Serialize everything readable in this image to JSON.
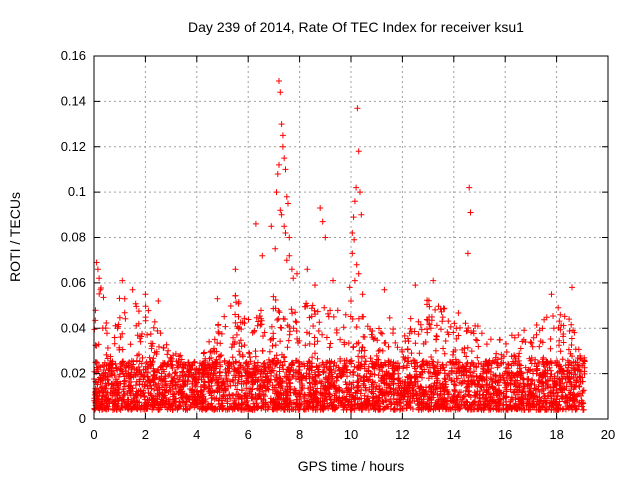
{
  "chart_data": {
    "type": "scatter",
    "title": "Day 239 of 2014, Rate Of TEC Index for receiver ksu1",
    "xlabel": "GPS time / hours",
    "ylabel": "ROTI / TECUs",
    "xlim": [
      0,
      20
    ],
    "ylim": [
      0,
      0.16
    ],
    "x_ticks": [
      "0",
      "2",
      "4",
      "6",
      "8",
      "10",
      "12",
      "14",
      "16",
      "18",
      "20"
    ],
    "y_ticks": [
      "0",
      "0.02",
      "0.04",
      "0.06",
      "0.08",
      "0.1",
      "0.12",
      "0.14",
      "0.16"
    ],
    "grid": true,
    "marker": "+",
    "color": "#ff0000",
    "series": [
      {
        "x": [
          7.2,
          7.25,
          7.3,
          7.35,
          7.4,
          7.45,
          7.5,
          7.55,
          7.3,
          7.4,
          7.6,
          7.7,
          7.1,
          7.15,
          7.2,
          7.35,
          7.45,
          7.05,
          7.5,
          7.25,
          6.55,
          6.9,
          7.6,
          7.75,
          10.05,
          10.1,
          10.15,
          10.2,
          10.25,
          10.3,
          10.35,
          10.4,
          10.12,
          10.22,
          10.05,
          10.15,
          10.3,
          9.95,
          10.0,
          10.45,
          14.6,
          14.65,
          14.55,
          0.1,
          0.15,
          0.2,
          0.25,
          5.5,
          6.3,
          8.8,
          8.9,
          9.0,
          13.2,
          1.1,
          1.5,
          2.0,
          2.5,
          4.8,
          11.3,
          12.5,
          17.8,
          18.6,
          7.9,
          8.3,
          8.6,
          9.3
        ],
        "y": [
          0.149,
          0.144,
          0.13,
          0.12,
          0.115,
          0.11,
          0.098,
          0.095,
          0.09,
          0.085,
          0.072,
          0.066,
          0.1,
          0.108,
          0.112,
          0.125,
          0.082,
          0.075,
          0.07,
          0.092,
          0.072,
          0.085,
          0.08,
          0.062,
          0.082,
          0.089,
          0.096,
          0.102,
          0.137,
          0.118,
          0.1,
          0.09,
          0.079,
          0.068,
          0.073,
          0.061,
          0.064,
          0.058,
          0.052,
          0.055,
          0.102,
          0.091,
          0.073,
          0.069,
          0.066,
          0.062,
          0.057,
          0.066,
          0.086,
          0.093,
          0.087,
          0.08,
          0.061,
          0.061,
          0.057,
          0.055,
          0.052,
          0.053,
          0.057,
          0.059,
          0.055,
          0.058,
          0.064,
          0.066,
          0.059,
          0.061
        ]
      }
    ],
    "dense_band": {
      "x_range": [
        0,
        19.1
      ],
      "baseline_range": [
        0.004,
        0.035
      ],
      "local_peak_envelope": [
        [
          0,
          0.055
        ],
        [
          0.3,
          0.06
        ],
        [
          0.6,
          0.04
        ],
        [
          1.0,
          0.055
        ],
        [
          1.5,
          0.05
        ],
        [
          2.0,
          0.055
        ],
        [
          2.5,
          0.04
        ],
        [
          3.0,
          0.03
        ],
        [
          3.5,
          0.03
        ],
        [
          4.0,
          0.028
        ],
        [
          4.5,
          0.035
        ],
        [
          5.0,
          0.045
        ],
        [
          5.5,
          0.055
        ],
        [
          6.0,
          0.045
        ],
        [
          6.5,
          0.05
        ],
        [
          7.0,
          0.055
        ],
        [
          7.5,
          0.05
        ],
        [
          8.0,
          0.05
        ],
        [
          8.5,
          0.055
        ],
        [
          9.0,
          0.05
        ],
        [
          9.5,
          0.048
        ],
        [
          10.0,
          0.05
        ],
        [
          10.5,
          0.045
        ],
        [
          11.0,
          0.04
        ],
        [
          11.5,
          0.045
        ],
        [
          12.0,
          0.035
        ],
        [
          12.5,
          0.05
        ],
        [
          13.0,
          0.055
        ],
        [
          13.5,
          0.05
        ],
        [
          14.0,
          0.045
        ],
        [
          14.5,
          0.05
        ],
        [
          15.0,
          0.04
        ],
        [
          15.5,
          0.035
        ],
        [
          16.0,
          0.035
        ],
        [
          16.5,
          0.04
        ],
        [
          17.0,
          0.04
        ],
        [
          17.5,
          0.045
        ],
        [
          18.0,
          0.05
        ],
        [
          18.5,
          0.045
        ],
        [
          19.0,
          0.03
        ]
      ]
    }
  }
}
